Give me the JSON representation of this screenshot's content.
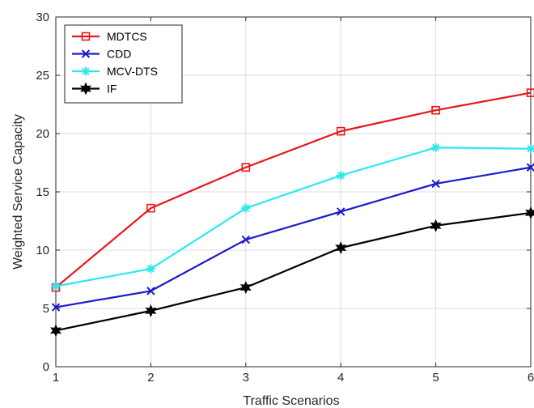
{
  "chart_data": {
    "type": "line",
    "title": "",
    "xlabel": "Traffic Scenarios",
    "ylabel": "Weighted Service Capacity",
    "x": [
      1,
      2,
      3,
      4,
      5,
      6
    ],
    "xlim": [
      1,
      6
    ],
    "ylim": [
      0,
      30
    ],
    "xticks": [
      1,
      2,
      3,
      4,
      5,
      6
    ],
    "yticks": [
      0,
      5,
      10,
      15,
      20,
      25,
      30
    ],
    "grid": true,
    "legend_position": "top-left",
    "series": [
      {
        "name": "MDTCS",
        "color": "#e8161b",
        "marker": "square",
        "values": [
          6.8,
          13.6,
          17.1,
          20.2,
          22.0,
          23.5
        ]
      },
      {
        "name": "CDD",
        "color": "#1a1acc",
        "marker": "x",
        "values": [
          5.1,
          6.5,
          10.9,
          13.3,
          15.7,
          17.1
        ]
      },
      {
        "name": "MCV-DTS",
        "color": "#2ee8ef",
        "marker": "asterisk",
        "values": [
          6.9,
          8.4,
          13.6,
          16.4,
          18.8,
          18.7
        ]
      },
      {
        "name": "IF",
        "color": "#000000",
        "marker": "hexagram",
        "values": [
          3.1,
          4.8,
          6.8,
          10.2,
          12.1,
          13.2
        ]
      }
    ]
  }
}
